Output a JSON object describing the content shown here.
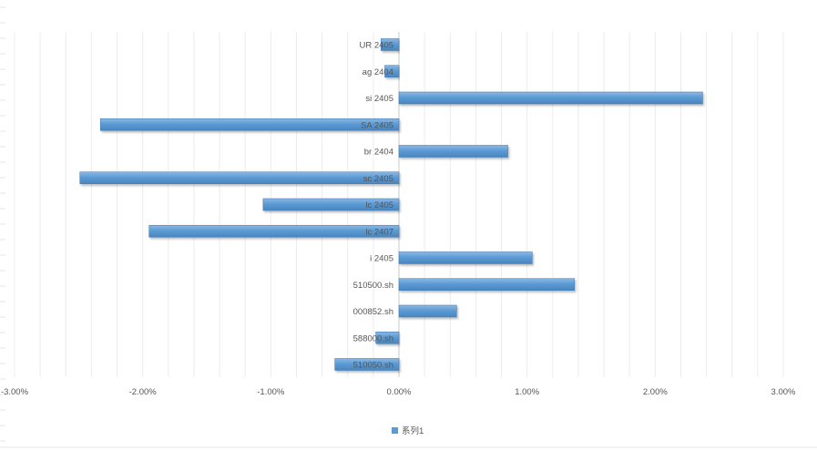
{
  "chart_data": {
    "type": "bar",
    "orientation": "horizontal",
    "categories": [
      "UR 2405",
      "ag 2404",
      "si 2405",
      "SA 2405",
      "br 2404",
      "sc 2405",
      "lc 2405",
      "lc 2407",
      "i 2405",
      "510500.sh",
      "000852.sh",
      "588000.sh",
      "510050.sh"
    ],
    "series": [
      {
        "name": "系列1",
        "values": [
          -0.0014,
          -0.0011,
          0.0237,
          -0.0233,
          0.0085,
          -0.0249,
          -0.0106,
          -0.0195,
          0.0104,
          0.0137,
          0.0045,
          -0.0018,
          -0.005
        ]
      }
    ],
    "xlim": [
      -0.03,
      0.03
    ],
    "xticks": [
      -0.03,
      -0.02,
      -0.01,
      0,
      0.01,
      0.02,
      0.03
    ],
    "xtick_labels": [
      "-3.00%",
      "-2.00%",
      "-1.00%",
      "0.00%",
      "1.00%",
      "2.00%",
      "3.00%"
    ],
    "grid": true,
    "legend": "bottom",
    "bar_color": "#5b9bd5",
    "title": "",
    "xlabel": "",
    "ylabel": ""
  }
}
